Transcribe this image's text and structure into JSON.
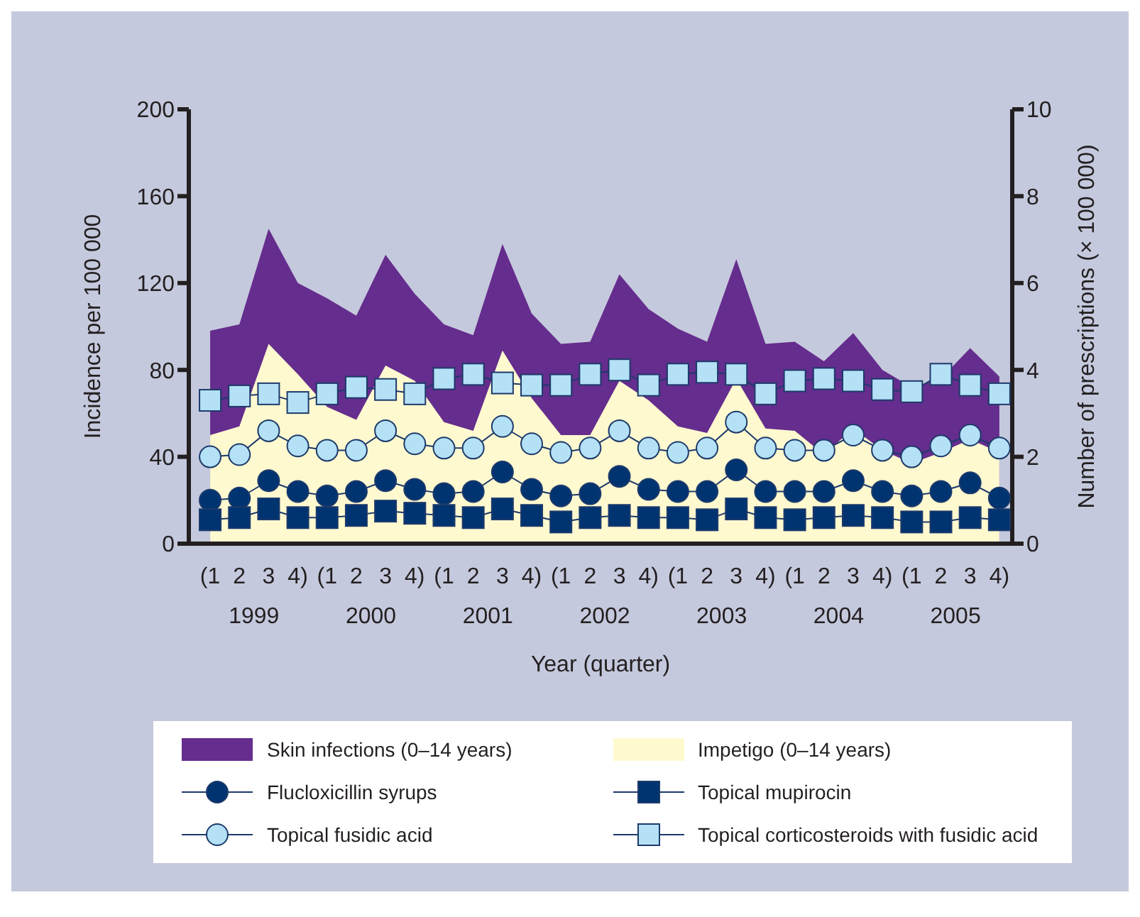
{
  "chart_data": {
    "type": "line",
    "categories": [
      "(1",
      "2",
      "3",
      "4)",
      "(1",
      "2",
      "3",
      "4)",
      "(1",
      "2",
      "3",
      "4)",
      "(1",
      "2",
      "3",
      "4)",
      "(1",
      "2",
      "3",
      "4)",
      "(1",
      "2",
      "3",
      "4)",
      "(1",
      "2",
      "3",
      "4)"
    ],
    "annotations": [
      "1999",
      "2000",
      "2001",
      "2002",
      "2003",
      "2004",
      "2005"
    ],
    "xlabel": "Year (quarter)",
    "ylabel": "Incidence per 100 000",
    "y2label": "Number of prescriptions (× 100 000)",
    "ylim": [
      0,
      200
    ],
    "yticks": [
      0,
      40,
      80,
      120,
      160,
      200
    ],
    "y2lim": [
      0,
      10
    ],
    "y2ticks": [
      0,
      2,
      4,
      6,
      8,
      10
    ],
    "legend": "bottom",
    "series": [
      {
        "name": "Skin infections (0–14 years)",
        "type": "area",
        "color": "#652d8d",
        "values": [
          98,
          101,
          145,
          120,
          113,
          105,
          133,
          115,
          101,
          96,
          138,
          106,
          92,
          93,
          124,
          108,
          99,
          93,
          131,
          92,
          93,
          84,
          97,
          80,
          72,
          76,
          90,
          77
        ]
      },
      {
        "name": "Impetigo (0–14 years)",
        "type": "area",
        "color": "#fff9d0",
        "values": [
          50,
          54,
          92,
          78,
          63,
          57,
          82,
          75,
          56,
          52,
          89,
          67,
          50,
          50,
          75,
          66,
          54,
          51,
          76,
          53,
          52,
          41,
          53,
          43,
          37,
          42,
          48,
          42
        ]
      },
      {
        "name": "Flucloxicillin syrups",
        "axis": "y2",
        "marker": "circle",
        "color": "#003471",
        "values": [
          1.0,
          1.05,
          1.45,
          1.2,
          1.1,
          1.2,
          1.45,
          1.25,
          1.15,
          1.2,
          1.65,
          1.25,
          1.1,
          1.15,
          1.55,
          1.25,
          1.2,
          1.2,
          1.7,
          1.2,
          1.2,
          1.2,
          1.45,
          1.2,
          1.1,
          1.2,
          1.4,
          1.05
        ]
      },
      {
        "name": "Topical mupirocin",
        "axis": "y2",
        "marker": "square",
        "color": "#003471",
        "values": [
          0.55,
          0.6,
          0.8,
          0.6,
          0.6,
          0.65,
          0.75,
          0.7,
          0.65,
          0.6,
          0.8,
          0.65,
          0.5,
          0.6,
          0.65,
          0.6,
          0.6,
          0.55,
          0.8,
          0.6,
          0.55,
          0.6,
          0.65,
          0.6,
          0.5,
          0.5,
          0.6,
          0.55
        ]
      },
      {
        "name": "Topical fusidic acid",
        "axis": "y2",
        "marker": "circle",
        "color": "#b5e1f6",
        "values": [
          2.0,
          2.05,
          2.6,
          2.25,
          2.15,
          2.15,
          2.6,
          2.3,
          2.2,
          2.2,
          2.7,
          2.3,
          2.1,
          2.2,
          2.6,
          2.2,
          2.1,
          2.2,
          2.8,
          2.2,
          2.15,
          2.15,
          2.5,
          2.15,
          2.0,
          2.25,
          2.5,
          2.2
        ]
      },
      {
        "name": "Topical corticosteroids with fusidic acid",
        "axis": "y2",
        "marker": "square",
        "color": "#b5e1f6",
        "values": [
          3.3,
          3.4,
          3.45,
          3.25,
          3.45,
          3.6,
          3.55,
          3.45,
          3.8,
          3.9,
          3.7,
          3.65,
          3.65,
          3.9,
          4.0,
          3.65,
          3.9,
          3.95,
          3.9,
          3.45,
          3.75,
          3.8,
          3.75,
          3.55,
          3.5,
          3.9,
          3.65,
          3.45
        ]
      }
    ]
  }
}
